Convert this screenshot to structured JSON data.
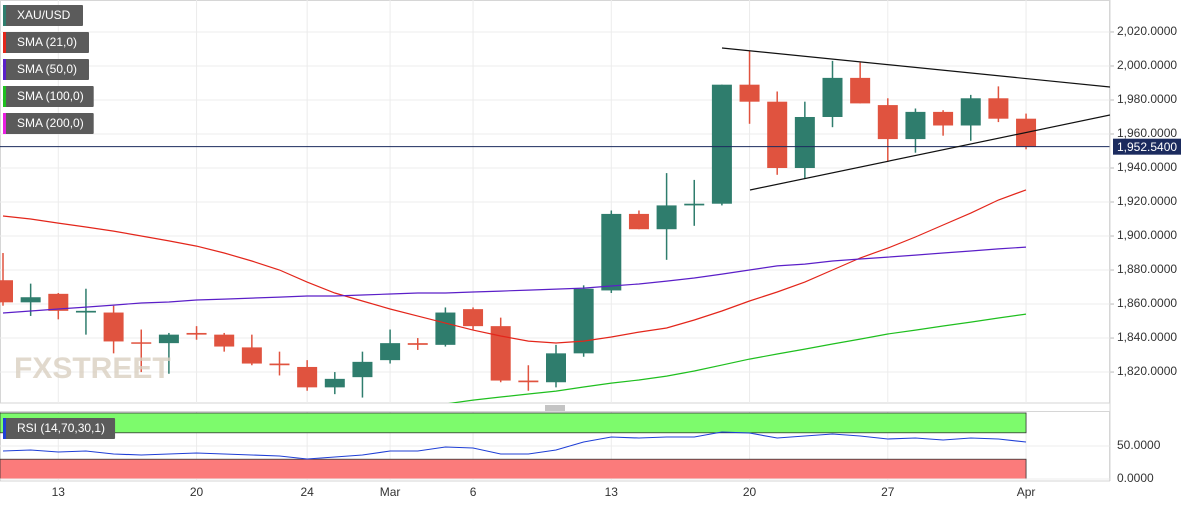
{
  "chart_data": [
    {
      "type": "candlestick",
      "name": "XAU/USD",
      "watermark": "FXSTREET",
      "up_color": "#2f7d6d",
      "down_color": "#e0533f",
      "categories": [
        null,
        null,
        "13",
        null,
        null,
        null,
        null,
        "20",
        null,
        null,
        null,
        "24",
        null,
        null,
        "Mar",
        null,
        null,
        "6",
        null,
        null,
        null,
        null,
        "13",
        null,
        null,
        null,
        null,
        "20",
        null,
        null,
        null,
        null,
        "27",
        null,
        null,
        null,
        null,
        "Apr"
      ],
      "open": [
        1874,
        1861,
        1866,
        1855,
        1855,
        1837.5,
        1837,
        1843,
        1842,
        1834.5,
        1825,
        1823,
        1811,
        1817,
        1827,
        1837,
        1836,
        1857,
        1847,
        1815,
        1814,
        1831,
        1868,
        1913,
        1904,
        1918,
        1919,
        1989,
        1979,
        1940,
        1970,
        1993,
        1977,
        1957,
        1973,
        1965,
        1981,
        1969
      ],
      "high": [
        1890,
        1872,
        1866.5,
        1869,
        1859,
        1845,
        1843,
        1847,
        1843,
        1842,
        1832,
        1827,
        1820,
        1832,
        1845,
        1840,
        1858,
        1858,
        1852,
        1824,
        1836,
        1871,
        1915,
        1915,
        1937,
        1933,
        1989,
        2009,
        1985,
        1979,
        2003,
        2002,
        1981,
        1975,
        1974,
        1983,
        1988,
        1972
      ],
      "low": [
        1859,
        1853,
        1851,
        1842,
        1831,
        1820,
        1819,
        1839,
        1832,
        1824,
        1818,
        1809,
        1807,
        1805,
        1825,
        1833,
        1835,
        1845,
        1814,
        1809,
        1811,
        1829,
        1866.5,
        1904,
        1886,
        1906,
        1918,
        1966,
        1936,
        1934,
        1964,
        1978,
        1944,
        1949,
        1959,
        1956,
        1967,
        1951
      ],
      "close": [
        1861,
        1864,
        1856,
        1856,
        1838,
        1837,
        1842,
        1842,
        1835,
        1825,
        1824,
        1811,
        1816,
        1826,
        1837,
        1836,
        1855,
        1847,
        1815,
        1814,
        1831,
        1869,
        1913,
        1904,
        1918,
        1919,
        1989,
        1979,
        1940,
        1970,
        1993,
        1978,
        1957,
        1973,
        1965,
        1981,
        1969,
        1952.54
      ],
      "series": [
        {
          "name": "SMA (21,0)",
          "color": "#e3261b",
          "values": [
            1911.8,
            1910,
            1907.6,
            1905.3,
            1902.9,
            1900,
            1897.1,
            1894.1,
            1890,
            1885.3,
            1880,
            1872.9,
            1866.5,
            1861.8,
            1857.1,
            1852.9,
            1848.8,
            1844.7,
            1841.2,
            1838.2,
            1837.1,
            1838.2,
            1840.6,
            1843.5,
            1845.9,
            1850.6,
            1855.9,
            1861.8,
            1867.1,
            1872.9,
            1880,
            1887.1,
            1892.9,
            1899.4,
            1906.5,
            1913.5,
            1921.2,
            1927.1
          ]
        },
        {
          "name": "SMA (50,0)",
          "color": "#5b1fc8",
          "values": [
            1854.7,
            1855.9,
            1857.1,
            1858.2,
            1859.4,
            1860.6,
            1861.2,
            1862.4,
            1862.9,
            1863.5,
            1864.1,
            1864.7,
            1864.7,
            1865.3,
            1865.9,
            1866.5,
            1866.5,
            1867.1,
            1867.6,
            1868.2,
            1868.8,
            1869.4,
            1870.6,
            1871.8,
            1873.5,
            1875.3,
            1877.6,
            1880,
            1882.4,
            1883.5,
            1885.3,
            1886.5,
            1887.6,
            1888.8,
            1890,
            1891.2,
            1892.4,
            1893.5
          ]
        },
        {
          "name": "SMA (100,0)",
          "color": "#1fbf1f",
          "values": [
            null,
            null,
            null,
            null,
            null,
            null,
            null,
            null,
            null,
            null,
            null,
            null,
            null,
            null,
            null,
            null,
            1801.2,
            1803.5,
            1805.3,
            1807.1,
            1808.8,
            1811.2,
            1813.5,
            1815.3,
            1817.6,
            1820.6,
            1824.1,
            1827.6,
            1830.6,
            1833.5,
            1836.5,
            1839.4,
            1842.4,
            1844.7,
            1847.1,
            1849.4,
            1851.8,
            1854.1
          ]
        },
        {
          "name": "SMA (200,0)",
          "color": "#e81fe0",
          "values": [
            null,
            null,
            null,
            null,
            null,
            null,
            null,
            null,
            null,
            null,
            null,
            null,
            null,
            null,
            null,
            null,
            null,
            null,
            null,
            null,
            null,
            null,
            null,
            null,
            null,
            null,
            null,
            null,
            null,
            null,
            null,
            null,
            null,
            null,
            null,
            null,
            null,
            null
          ]
        }
      ],
      "last_price": 1952.54,
      "last_price_label": "1,952.5400",
      "last_price_color": "#1b2b5e",
      "ylim": [
        1801.8,
        2038.8
      ],
      "yticks": [
        {
          "value": 1820,
          "label": "1,820.0000"
        },
        {
          "value": 1840,
          "label": "1,840.0000"
        },
        {
          "value": 1860,
          "label": "1,860.0000"
        },
        {
          "value": 1880,
          "label": "1,880.0000"
        },
        {
          "value": 1900,
          "label": "1,900.0000"
        },
        {
          "value": 1920,
          "label": "1,920.0000"
        },
        {
          "value": 1940,
          "label": "1,940.0000"
        },
        {
          "value": 1960,
          "label": "1,960.0000"
        },
        {
          "value": 1980,
          "label": "1,980.0000"
        },
        {
          "value": 2000,
          "label": "2,000.0000"
        },
        {
          "value": 2020,
          "label": "2,020.0000"
        }
      ],
      "grid": true
    },
    {
      "type": "line",
      "series": [
        {
          "name": "RSI (14,70,30,1)",
          "color": "#1f3fd6",
          "values": [
            42.4,
            43.9,
            40.9,
            42.4,
            37.9,
            36.4,
            37.9,
            39.4,
            37.9,
            36.4,
            34.8,
            30.3,
            33.3,
            36.4,
            42.4,
            42.4,
            48.5,
            47,
            37.9,
            37.9,
            43.9,
            56.1,
            63.6,
            62.1,
            63.6,
            63.6,
            71.2,
            69.7,
            62.1,
            65.2,
            68.2,
            65.2,
            60.6,
            62.1,
            59.1,
            62.1,
            60.6,
            56.1
          ]
        }
      ],
      "bands": [
        {
          "from": 70,
          "to": 100,
          "color": "#7dfb6c"
        },
        {
          "from": 0,
          "to": 30,
          "color": "#fb7b7b"
        }
      ],
      "ylim": [
        -3,
        101.5
      ],
      "yticks": [
        {
          "value": 0,
          "label": "0.0000"
        },
        {
          "value": 50,
          "label": "50.0000"
        }
      ],
      "grid": true
    }
  ]
}
